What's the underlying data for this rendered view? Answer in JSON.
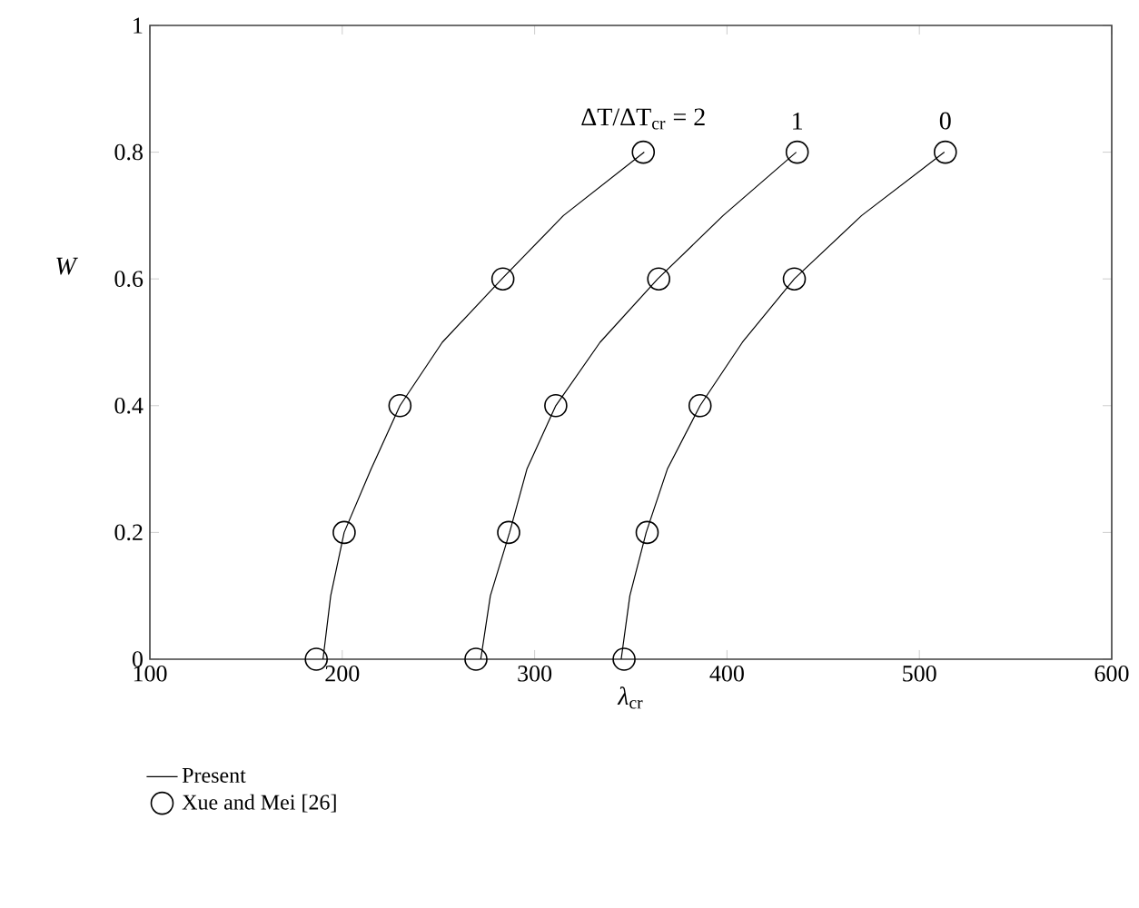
{
  "chart_data": {
    "type": "line",
    "xlabel": "*λ*$_{cr}$",
    "ylabel": "W",
    "xlim": [
      100,
      600
    ],
    "ylim": [
      0,
      1
    ],
    "xticks": [
      100,
      200,
      300,
      400,
      500,
      600
    ],
    "yticks": [
      0,
      0.2,
      0.4,
      0.6,
      0.8,
      1
    ],
    "grid": false,
    "legend": "bottom left",
    "line_style": "solid",
    "series": [
      {
        "name": "Present",
        "color": "#000000",
        "marker": "none",
        "x": [
          190,
          194,
          201,
          215,
          230,
          252,
          283,
          315,
          357
        ],
        "values": [
          0,
          0.1,
          0.2,
          0.3,
          0.4,
          0.5,
          0.6,
          0.7,
          0.8
        ]
      },
      {
        "color": "#000000",
        "marker": "none",
        "x": [
          272,
          277,
          287,
          296,
          311,
          334,
          364,
          398,
          436
        ],
        "values": [
          0,
          0.1,
          0.2,
          0.3,
          0.4,
          0.5,
          0.6,
          0.7,
          0.8
        ]
      },
      {
        "color": "#000000",
        "marker": "none",
        "x": [
          345,
          349.5,
          358,
          369,
          386,
          408,
          435,
          470,
          513
        ],
        "values": [
          0,
          0.1,
          0.2,
          0.3,
          0.4,
          0.5,
          0.6,
          0.7,
          0.8
        ]
      },
      {
        "name": "Xue and Mei [26]",
        "type": "scatter",
        "color": "#000000",
        "marker": "circle",
        "x": [
          186.5,
          201,
          230,
          283.5,
          356.5
        ],
        "values": [
          0,
          0.2,
          0.4,
          0.6,
          0.8
        ]
      },
      {
        "type": "scatter",
        "color": "#000000",
        "marker": "circle",
        "x": [
          269.5,
          286.5,
          311,
          364.5,
          436.5
        ],
        "values": [
          0,
          0.2,
          0.4,
          0.6,
          0.8
        ]
      },
      {
        "type": "scatter",
        "color": "#000000",
        "marker": "circle",
        "x": [
          346.5,
          358.5,
          386,
          435,
          513.5
        ],
        "values": [
          0,
          0.2,
          0.4,
          0.6,
          0.8
        ]
      }
    ],
    "annotations": [
      {
        "text": "ΔT/ΔT$_{cr}$ = 2",
        "x": 356.5,
        "y": 0.8
      },
      {
        "text": "1",
        "x": 436.5,
        "y": 0.8
      },
      {
        "text": "0",
        "x": 513.5,
        "y": 0.8
      }
    ]
  }
}
